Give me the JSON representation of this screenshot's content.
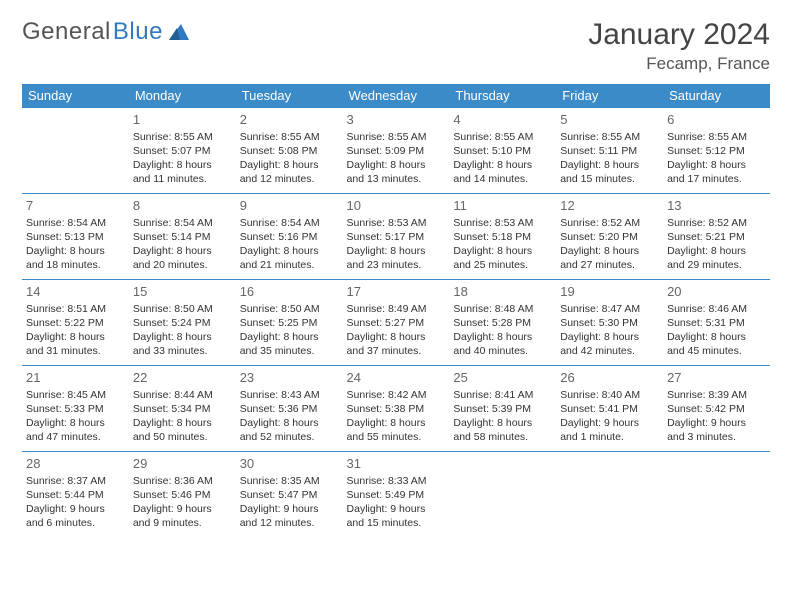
{
  "brand": {
    "part1": "General",
    "part2": "Blue"
  },
  "title": "January 2024",
  "location": "Fecamp, France",
  "colors": {
    "header_bg": "#3b8bc9",
    "header_text": "#ffffff",
    "border": "#3b8bc9",
    "text": "#333333",
    "daynum": "#666666",
    "brand_gray": "#555555",
    "brand_blue": "#2f7ac0"
  },
  "weekdays": [
    "Sunday",
    "Monday",
    "Tuesday",
    "Wednesday",
    "Thursday",
    "Friday",
    "Saturday"
  ],
  "grid": {
    "first_weekday_index": 1,
    "days": [
      {
        "n": 1,
        "sr": "8:55 AM",
        "ss": "5:07 PM",
        "dl": "8 hours and 11 minutes."
      },
      {
        "n": 2,
        "sr": "8:55 AM",
        "ss": "5:08 PM",
        "dl": "8 hours and 12 minutes."
      },
      {
        "n": 3,
        "sr": "8:55 AM",
        "ss": "5:09 PM",
        "dl": "8 hours and 13 minutes."
      },
      {
        "n": 4,
        "sr": "8:55 AM",
        "ss": "5:10 PM",
        "dl": "8 hours and 14 minutes."
      },
      {
        "n": 5,
        "sr": "8:55 AM",
        "ss": "5:11 PM",
        "dl": "8 hours and 15 minutes."
      },
      {
        "n": 6,
        "sr": "8:55 AM",
        "ss": "5:12 PM",
        "dl": "8 hours and 17 minutes."
      },
      {
        "n": 7,
        "sr": "8:54 AM",
        "ss": "5:13 PM",
        "dl": "8 hours and 18 minutes."
      },
      {
        "n": 8,
        "sr": "8:54 AM",
        "ss": "5:14 PM",
        "dl": "8 hours and 20 minutes."
      },
      {
        "n": 9,
        "sr": "8:54 AM",
        "ss": "5:16 PM",
        "dl": "8 hours and 21 minutes."
      },
      {
        "n": 10,
        "sr": "8:53 AM",
        "ss": "5:17 PM",
        "dl": "8 hours and 23 minutes."
      },
      {
        "n": 11,
        "sr": "8:53 AM",
        "ss": "5:18 PM",
        "dl": "8 hours and 25 minutes."
      },
      {
        "n": 12,
        "sr": "8:52 AM",
        "ss": "5:20 PM",
        "dl": "8 hours and 27 minutes."
      },
      {
        "n": 13,
        "sr": "8:52 AM",
        "ss": "5:21 PM",
        "dl": "8 hours and 29 minutes."
      },
      {
        "n": 14,
        "sr": "8:51 AM",
        "ss": "5:22 PM",
        "dl": "8 hours and 31 minutes."
      },
      {
        "n": 15,
        "sr": "8:50 AM",
        "ss": "5:24 PM",
        "dl": "8 hours and 33 minutes."
      },
      {
        "n": 16,
        "sr": "8:50 AM",
        "ss": "5:25 PM",
        "dl": "8 hours and 35 minutes."
      },
      {
        "n": 17,
        "sr": "8:49 AM",
        "ss": "5:27 PM",
        "dl": "8 hours and 37 minutes."
      },
      {
        "n": 18,
        "sr": "8:48 AM",
        "ss": "5:28 PM",
        "dl": "8 hours and 40 minutes."
      },
      {
        "n": 19,
        "sr": "8:47 AM",
        "ss": "5:30 PM",
        "dl": "8 hours and 42 minutes."
      },
      {
        "n": 20,
        "sr": "8:46 AM",
        "ss": "5:31 PM",
        "dl": "8 hours and 45 minutes."
      },
      {
        "n": 21,
        "sr": "8:45 AM",
        "ss": "5:33 PM",
        "dl": "8 hours and 47 minutes."
      },
      {
        "n": 22,
        "sr": "8:44 AM",
        "ss": "5:34 PM",
        "dl": "8 hours and 50 minutes."
      },
      {
        "n": 23,
        "sr": "8:43 AM",
        "ss": "5:36 PM",
        "dl": "8 hours and 52 minutes."
      },
      {
        "n": 24,
        "sr": "8:42 AM",
        "ss": "5:38 PM",
        "dl": "8 hours and 55 minutes."
      },
      {
        "n": 25,
        "sr": "8:41 AM",
        "ss": "5:39 PM",
        "dl": "8 hours and 58 minutes."
      },
      {
        "n": 26,
        "sr": "8:40 AM",
        "ss": "5:41 PM",
        "dl": "9 hours and 1 minute."
      },
      {
        "n": 27,
        "sr": "8:39 AM",
        "ss": "5:42 PM",
        "dl": "9 hours and 3 minutes."
      },
      {
        "n": 28,
        "sr": "8:37 AM",
        "ss": "5:44 PM",
        "dl": "9 hours and 6 minutes."
      },
      {
        "n": 29,
        "sr": "8:36 AM",
        "ss": "5:46 PM",
        "dl": "9 hours and 9 minutes."
      },
      {
        "n": 30,
        "sr": "8:35 AM",
        "ss": "5:47 PM",
        "dl": "9 hours and 12 minutes."
      },
      {
        "n": 31,
        "sr": "8:33 AM",
        "ss": "5:49 PM",
        "dl": "9 hours and 15 minutes."
      }
    ]
  },
  "labels": {
    "sunrise": "Sunrise:",
    "sunset": "Sunset:",
    "daylight": "Daylight:"
  }
}
